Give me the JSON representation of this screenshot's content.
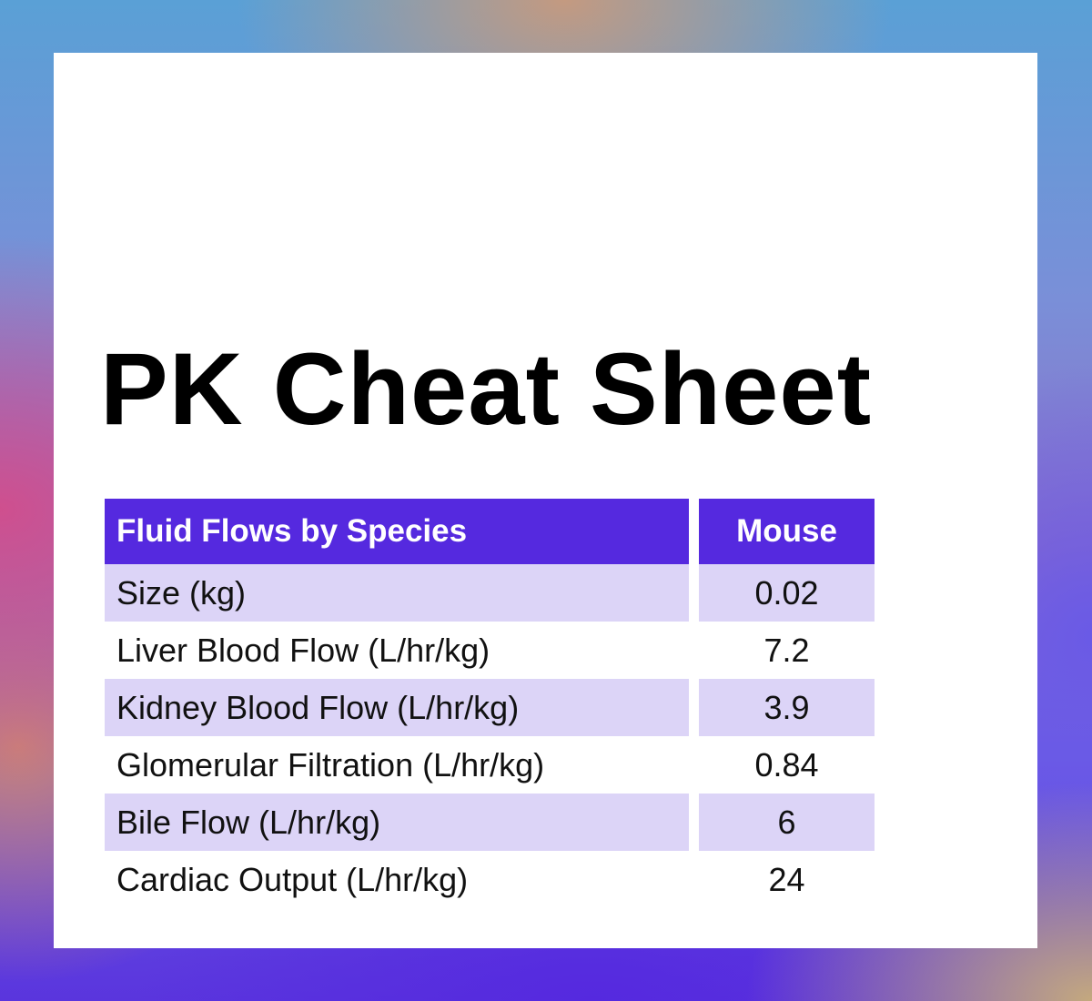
{
  "page": {
    "title": "PK Cheat Sheet"
  },
  "colors": {
    "header_bg": "#5529df",
    "shaded_row_bg": "#dcd4f7",
    "card_bg": "#ffffff",
    "text": "#111111"
  },
  "table": {
    "header": {
      "label": "Fluid Flows by Species",
      "value": "Mouse"
    },
    "rows": [
      {
        "label": "Size (kg)",
        "value": "0.02",
        "shaded": true
      },
      {
        "label": "Liver Blood Flow (L/hr/kg)",
        "value": "7.2",
        "shaded": false
      },
      {
        "label": "Kidney Blood Flow (L/hr/kg)",
        "value": "3.9",
        "shaded": true
      },
      {
        "label": "Glomerular Filtration (L/hr/kg)",
        "value": "0.84",
        "shaded": false
      },
      {
        "label": "Bile Flow (L/hr/kg)",
        "value": "6",
        "shaded": true
      },
      {
        "label": "Cardiac Output (L/hr/kg)",
        "value": "24",
        "shaded": false
      }
    ]
  }
}
